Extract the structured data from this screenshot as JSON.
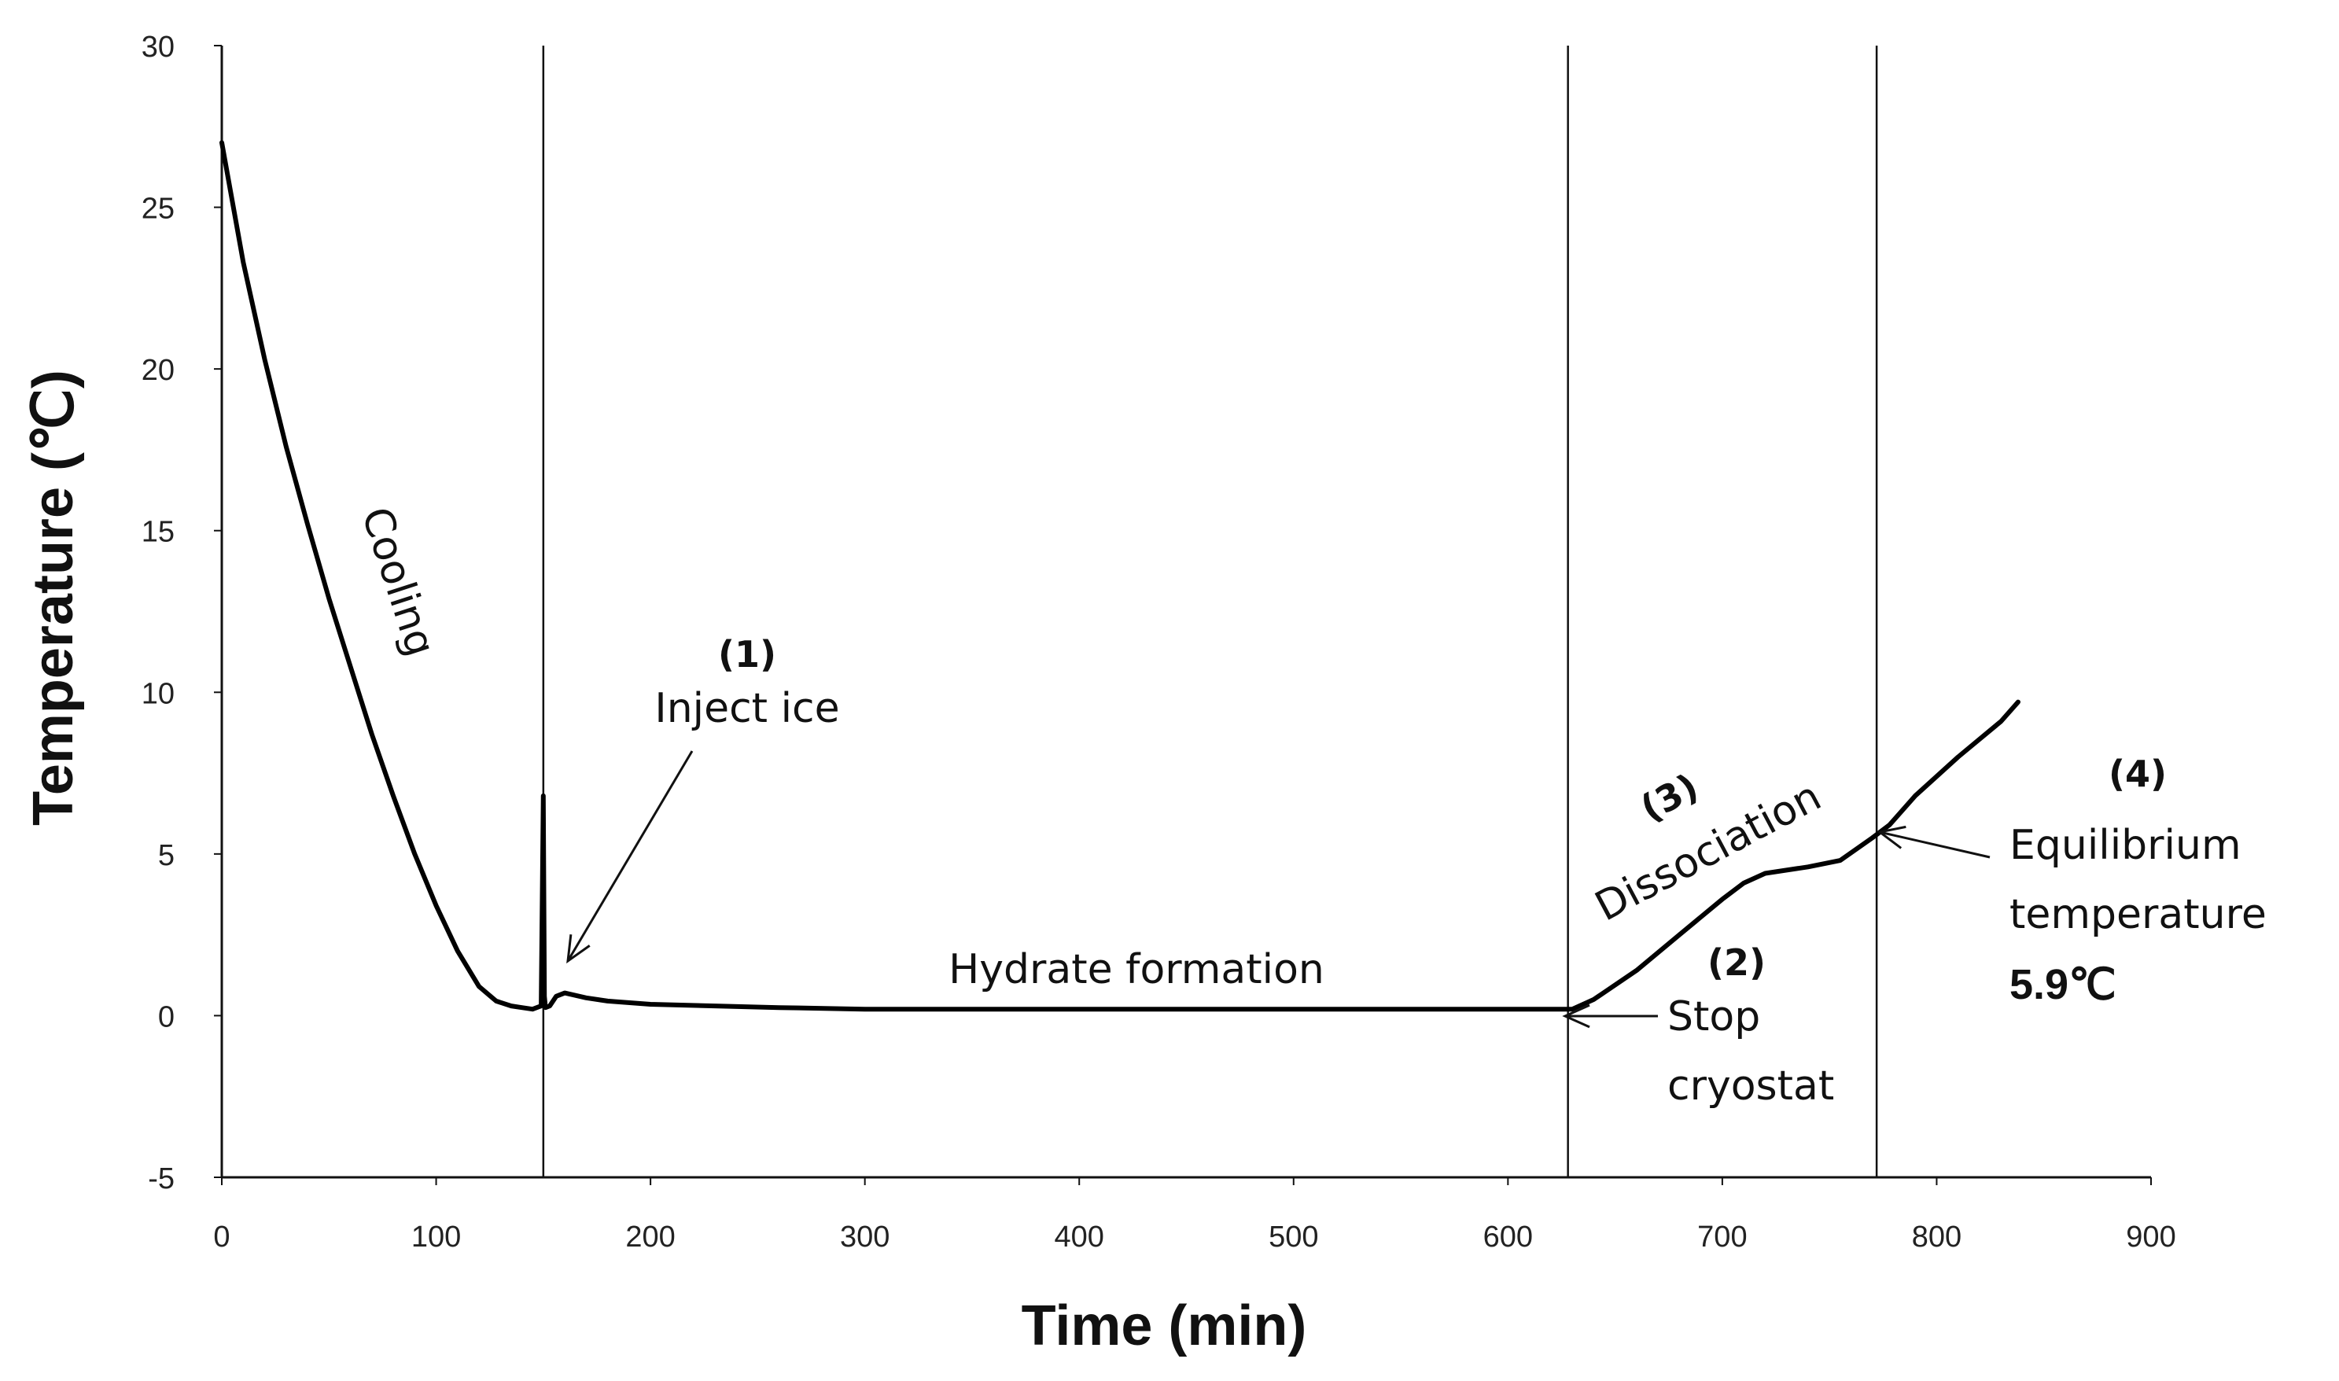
{
  "chart_data": {
    "type": "line",
    "xlabel": "Time (min)",
    "ylabel": "Temperature (℃)",
    "xlim": [
      0,
      900
    ],
    "ylim": [
      -5,
      30
    ],
    "xticks": [
      "0",
      "100",
      "200",
      "300",
      "400",
      "500",
      "600",
      "700",
      "800",
      "900"
    ],
    "yticks": [
      "-5",
      "0",
      "5",
      "10",
      "15",
      "20",
      "25",
      "30"
    ],
    "grid": false,
    "legend": "none",
    "line_color": "#000000",
    "series": [
      {
        "x": [
          0,
          10,
          20,
          30,
          40,
          50,
          60,
          70,
          80,
          90,
          100,
          110,
          120,
          128,
          135,
          140,
          145,
          149,
          150,
          150.5,
          151,
          153,
          156,
          160,
          170,
          180,
          200,
          230,
          260,
          300,
          350,
          400,
          450,
          500,
          550,
          600,
          630,
          640,
          660,
          680,
          700,
          710,
          720,
          740,
          755,
          770,
          778,
          790,
          810,
          830,
          838
        ],
        "y": [
          27.0,
          23.3,
          20.3,
          17.6,
          15.2,
          12.9,
          10.8,
          8.7,
          6.8,
          5.0,
          3.4,
          2.0,
          0.9,
          0.45,
          0.3,
          0.25,
          0.2,
          0.3,
          6.8,
          0.6,
          0.25,
          0.3,
          0.6,
          0.7,
          0.55,
          0.45,
          0.35,
          0.3,
          0.25,
          0.2,
          0.2,
          0.2,
          0.2,
          0.2,
          0.2,
          0.2,
          0.2,
          0.5,
          1.4,
          2.5,
          3.6,
          4.1,
          4.4,
          4.6,
          4.8,
          5.5,
          5.9,
          6.8,
          8.0,
          9.1,
          9.7
        ]
      }
    ],
    "vertical_lines": [
      150,
      628,
      772
    ],
    "annotations": [
      {
        "id": "cooling",
        "text": "Cooling"
      },
      {
        "id": "inject-num",
        "text": "(1)"
      },
      {
        "id": "inject",
        "text": "Inject ice"
      },
      {
        "id": "hydrate",
        "text": "Hydrate formation"
      },
      {
        "id": "dissoc-num",
        "text": "(3)"
      },
      {
        "id": "dissoc",
        "text": "Dissociation"
      },
      {
        "id": "stop-num",
        "text": "(2)"
      },
      {
        "id": "stop1",
        "text": "Stop"
      },
      {
        "id": "stop2",
        "text": "cryostat"
      },
      {
        "id": "eq-num",
        "text": "(4)"
      },
      {
        "id": "eq1",
        "text": "Equilibrium"
      },
      {
        "id": "eq2",
        "text": "temperature"
      },
      {
        "id": "eq3",
        "text": "5.9℃"
      }
    ]
  }
}
